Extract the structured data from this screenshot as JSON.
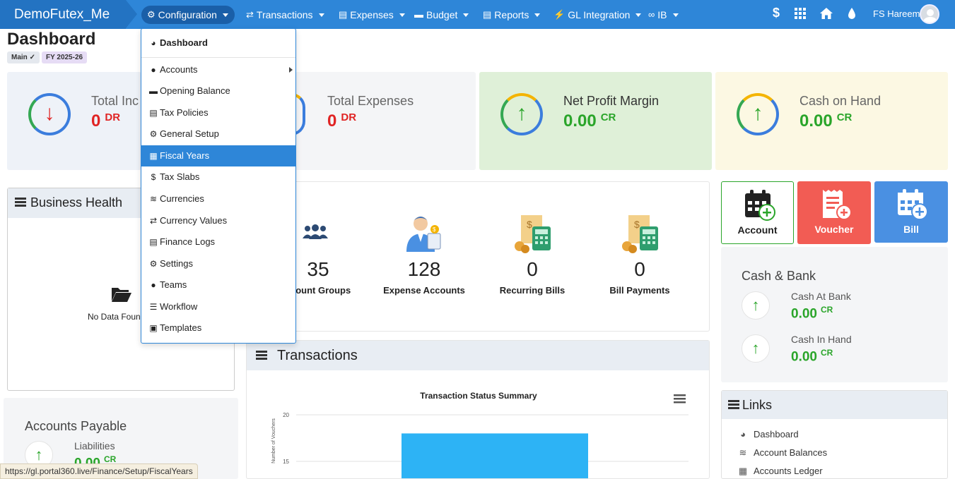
{
  "brand": "DemoFutex_Me",
  "nav": {
    "configuration": "Configuration",
    "transactions": "Transactions",
    "expenses": "Expenses",
    "budget": "Budget",
    "reports": "Reports",
    "gl_integration": "GL Integration",
    "ib": "IB",
    "user": "FS Hareem"
  },
  "page": {
    "title": "Dashboard",
    "badge_main": "Main",
    "badge_fy": "FY 2025-26"
  },
  "kpis": [
    {
      "label": "Total Inc",
      "value": "0",
      "unit": "DR"
    },
    {
      "label": "Total Expenses",
      "value": "0",
      "unit": "DR"
    },
    {
      "label": "Net Profit Margin",
      "value": "0.00",
      "unit": "CR"
    },
    {
      "label": "Cash on Hand",
      "value": "0.00",
      "unit": "CR"
    }
  ],
  "business_health": {
    "title": "Business Health",
    "empty": "No Data Foun"
  },
  "stats": [
    {
      "value": "35",
      "label": "ccount Groups"
    },
    {
      "value": "128",
      "label": "Expense Accounts"
    },
    {
      "value": "0",
      "label": "Recurring Bills"
    },
    {
      "value": "0",
      "label": "Bill Payments"
    }
  ],
  "quick_actions": {
    "account": "Account",
    "voucher": "Voucher",
    "bill": "Bill"
  },
  "cash_bank": {
    "title": "Cash & Bank",
    "bank_label": "Cash At Bank",
    "bank_value": "0.00",
    "bank_unit": "CR",
    "hand_label": "Cash In Hand",
    "hand_value": "0.00",
    "hand_unit": "CR"
  },
  "accounts_payable": {
    "title": "Accounts Payable",
    "label": "Liabilities",
    "value": "0.00",
    "unit": "CR"
  },
  "transactions": {
    "title": "Transactions",
    "chart_title": "Transaction Status Summary",
    "ylabel": "Number of Vouchers"
  },
  "chart_data": {
    "type": "bar",
    "title": "Transaction Status Summary",
    "ylabel": "Number of Vouchers",
    "yticks": [
      20,
      15
    ],
    "values": [
      18
    ]
  },
  "links": {
    "title": "Links",
    "items": [
      "Dashboard",
      "Account Balances",
      "Accounts Ledger"
    ]
  },
  "dropdown": {
    "header": "Dashboard",
    "items": [
      "Accounts",
      "Opening Balance",
      "Tax Policies",
      "General Setup",
      "Fiscal Years",
      "Tax Slabs",
      "Currencies",
      "Currency Values",
      "Finance Logs",
      "Settings",
      "Teams",
      "Workflow",
      "Templates"
    ],
    "selected": "Fiscal Years"
  },
  "status_url": "https://gl.portal360.live/Finance/Setup/FiscalYears",
  "colors": {
    "nav": "#2e86d8",
    "down": "#e02424",
    "up": "#2aa52a",
    "voucher": "#f25c54",
    "bill": "#4a90e2"
  }
}
